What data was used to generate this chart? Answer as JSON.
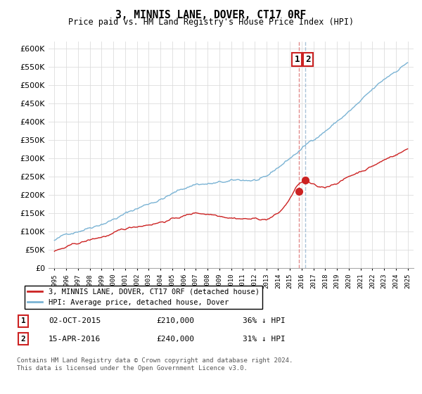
{
  "title": "3, MINNIS LANE, DOVER, CT17 0RF",
  "subtitle": "Price paid vs. HM Land Registry's House Price Index (HPI)",
  "legend_line1": "3, MINNIS LANE, DOVER, CT17 0RF (detached house)",
  "legend_line2": "HPI: Average price, detached house, Dover",
  "annotation1_label": "1",
  "annotation1_date": "02-OCT-2015",
  "annotation1_price": "£210,000",
  "annotation1_hpi": "36% ↓ HPI",
  "annotation2_label": "2",
  "annotation2_date": "15-APR-2016",
  "annotation2_price": "£240,000",
  "annotation2_hpi": "31% ↓ HPI",
  "footnote": "Contains HM Land Registry data © Crown copyright and database right 2024.\nThis data is licensed under the Open Government Licence v3.0.",
  "hpi_color": "#7ab3d4",
  "price_color": "#cc2222",
  "dashed_line_red": "#e08080",
  "dashed_line_blue": "#a0bcd4",
  "ylim": [
    0,
    620000
  ],
  "yticks": [
    0,
    50000,
    100000,
    150000,
    200000,
    250000,
    300000,
    350000,
    400000,
    450000,
    500000,
    550000,
    600000
  ],
  "sale1_year": 2015.75,
  "sale1_price": 210000,
  "sale2_year": 2016.29,
  "sale2_price": 240000
}
